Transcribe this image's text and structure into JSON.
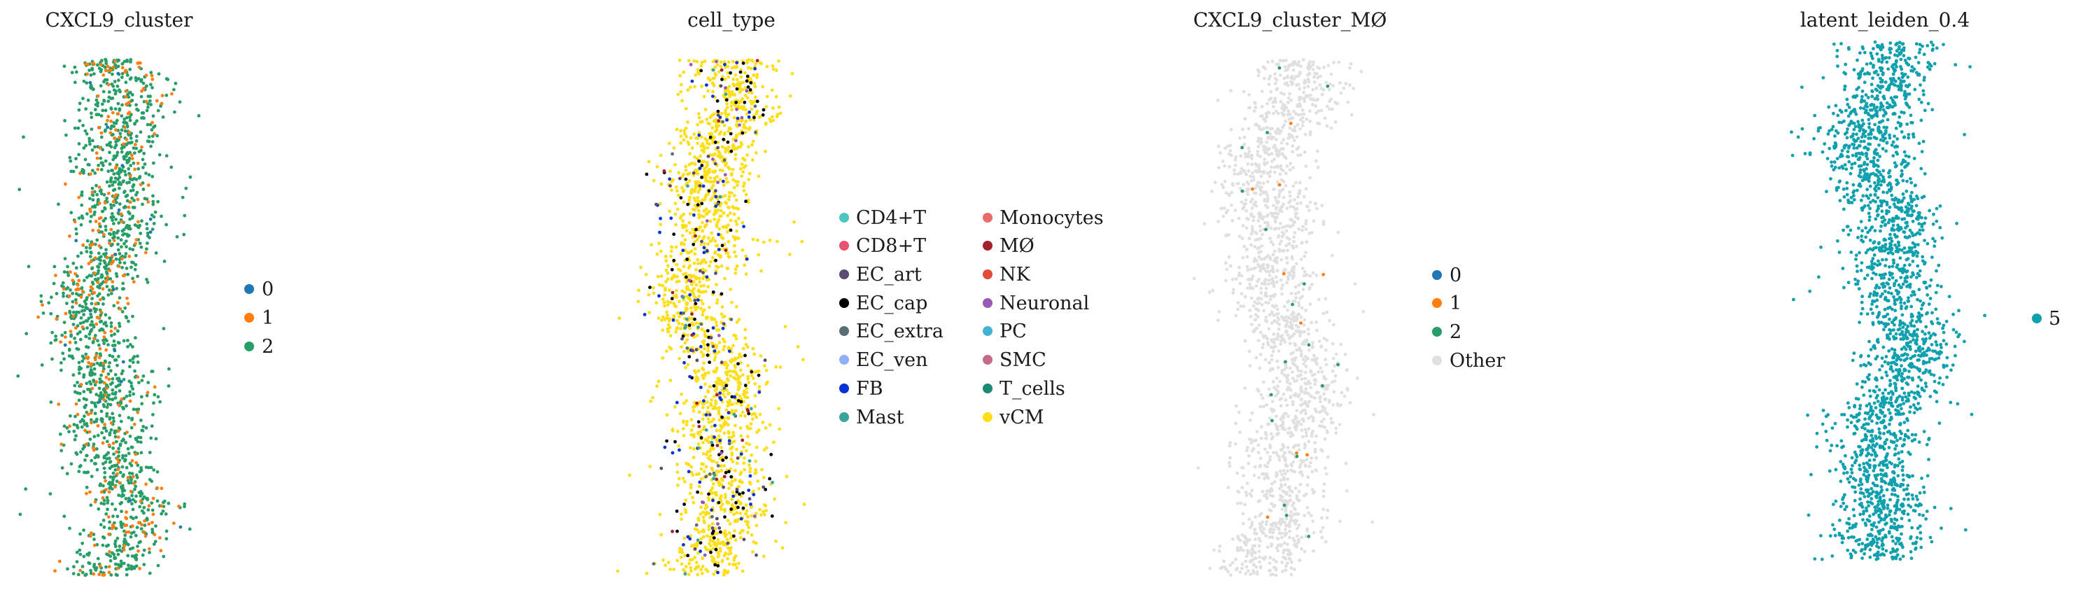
{
  "chart_data": [
    {
      "type": "scatter",
      "title": "CXCL9_cluster",
      "legend_placement": "right",
      "legend_entries": [
        {
          "label": "0",
          "color": "#1f77b4"
        },
        {
          "label": "1",
          "color": "#ff7f0e"
        },
        {
          "label": "2",
          "color": "#279e68"
        }
      ],
      "series": [
        {
          "label": "2",
          "color": "#279e68",
          "share": 0.82
        },
        {
          "label": "1",
          "color": "#ff7f0e",
          "share": 0.17
        },
        {
          "label": "0",
          "color": "#1f77b4",
          "share": 0.01
        }
      ]
    },
    {
      "type": "scatter",
      "title": "cell_type",
      "legend_placement": "right",
      "legend_entries": [
        {
          "label": "CD4+T",
          "color": "#4ec5c1"
        },
        {
          "label": "CD8+T",
          "color": "#e8526e"
        },
        {
          "label": "EC_art",
          "color": "#5b4a72"
        },
        {
          "label": "EC_cap",
          "color": "#000000"
        },
        {
          "label": "EC_extra",
          "color": "#5a6e75"
        },
        {
          "label": "EC_ven",
          "color": "#8fb2f7"
        },
        {
          "label": "FB",
          "color": "#0633d8"
        },
        {
          "label": "Mast",
          "color": "#3aa39a"
        },
        {
          "label": "Monocytes",
          "color": "#e96a6a"
        },
        {
          "label": "MØ",
          "color": "#a5202e"
        },
        {
          "label": "NK",
          "color": "#e04b3c"
        },
        {
          "label": "Neuronal",
          "color": "#9b59b6"
        },
        {
          "label": "PC",
          "color": "#44b3d1"
        },
        {
          "label": "SMC",
          "color": "#c46b8a"
        },
        {
          "label": "T_cells",
          "color": "#1a8a73"
        },
        {
          "label": "vCM",
          "color": "#fddf19"
        }
      ],
      "series": [
        {
          "label": "vCM",
          "color": "#fddf19",
          "share": 0.84
        },
        {
          "label": "EC_cap",
          "color": "#000000",
          "share": 0.06
        },
        {
          "label": "FB",
          "color": "#0633d8",
          "share": 0.04
        },
        {
          "label": "EC_art",
          "color": "#5b4a72",
          "share": 0.02
        },
        {
          "label": "MØ",
          "color": "#a5202e",
          "share": 0.01
        },
        {
          "label": "Neuronal",
          "color": "#9b59b6",
          "share": 0.01
        },
        {
          "label": "EC_extra",
          "color": "#5a6e75",
          "share": 0.01
        },
        {
          "label": "Mast",
          "color": "#3aa39a",
          "share": 0.01
        }
      ]
    },
    {
      "type": "scatter",
      "title": "CXCL9_cluster_MØ",
      "legend_placement": "right",
      "legend_entries": [
        {
          "label": "0",
          "color": "#1f77b4"
        },
        {
          "label": "1",
          "color": "#ff7f0e"
        },
        {
          "label": "2",
          "color": "#279e68"
        },
        {
          "label": "Other",
          "color": "#e0e0e0"
        }
      ],
      "series": [
        {
          "label": "Other",
          "color": "#e0e0e0",
          "share": 0.985
        },
        {
          "label": "2",
          "color": "#279e68",
          "share": 0.01
        },
        {
          "label": "1",
          "color": "#ff7f0e",
          "share": 0.005
        }
      ]
    },
    {
      "type": "scatter",
      "title": "latent_leiden_0.4",
      "legend_placement": "right",
      "legend_entries": [
        {
          "label": "5",
          "color": "#0fa0ae"
        }
      ],
      "series": [
        {
          "label": "5",
          "color": "#0fa0ae",
          "share": 1.0
        }
      ]
    }
  ]
}
